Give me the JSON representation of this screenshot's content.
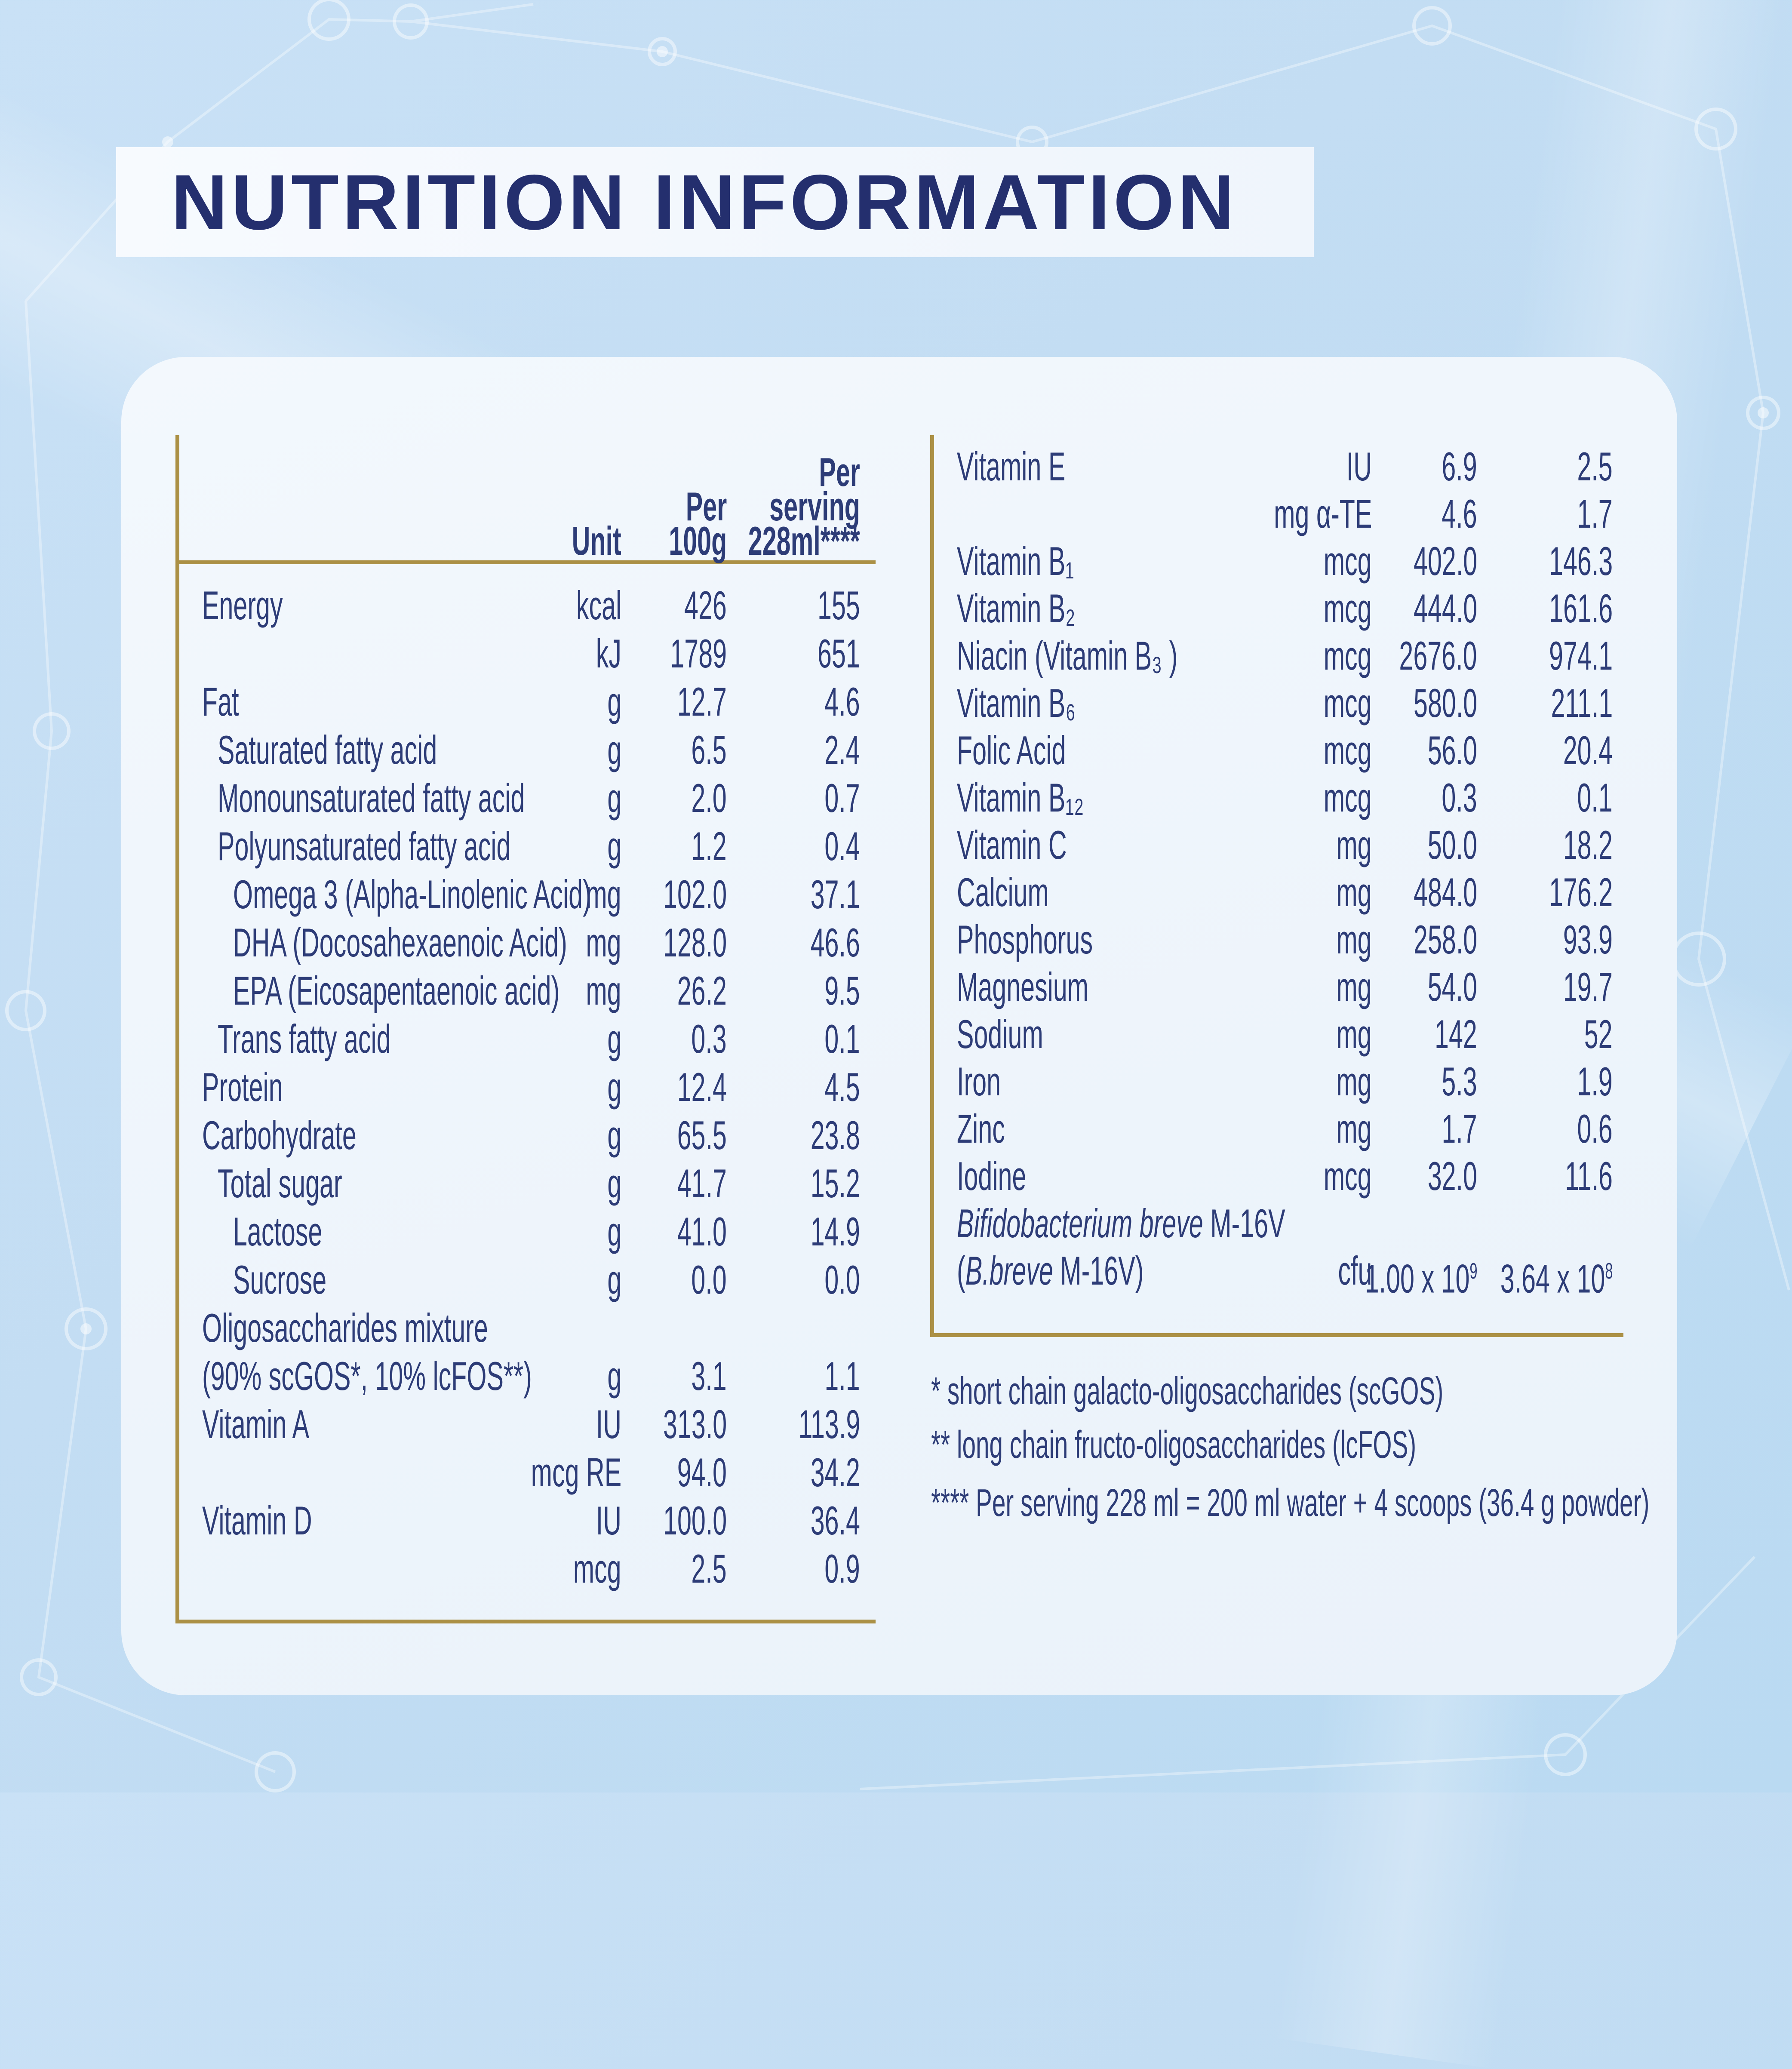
{
  "title": "NUTRITION INFORMATION",
  "colors": {
    "background_blue": "#c3ddf3",
    "panel_white": "#f2f7fd",
    "text_navy": "#2d3c77",
    "title_navy": "#242f6e",
    "accent_gold": "#ab9045"
  },
  "left_table": {
    "header": {
      "unit": "Unit",
      "per_100g": "Per\n100g",
      "per_serving": "Per\nserving\n228ml****"
    },
    "rows": [
      {
        "label": "Energy",
        "indent": 0,
        "unit": "kcal",
        "per_100g": "426",
        "per_serving": "155"
      },
      {
        "label": "",
        "indent": 0,
        "unit": "kJ",
        "per_100g": "1789",
        "per_serving": "651"
      },
      {
        "label": "Fat",
        "indent": 0,
        "unit": "g",
        "per_100g": "12.7",
        "per_serving": "4.6"
      },
      {
        "label": "Saturated fatty acid",
        "indent": 1,
        "unit": "g",
        "per_100g": "6.5",
        "per_serving": "2.4"
      },
      {
        "label": "Monounsaturated fatty acid",
        "indent": 1,
        "unit": "g",
        "per_100g": "2.0",
        "per_serving": "0.7"
      },
      {
        "label": "Polyunsaturated fatty acid",
        "indent": 1,
        "unit": "g",
        "per_100g": "1.2",
        "per_serving": "0.4"
      },
      {
        "label": "Omega 3 (Alpha-Linolenic Acid)",
        "indent": 2,
        "unit": "mg",
        "per_100g": "102.0",
        "per_serving": "37.1"
      },
      {
        "label": "DHA (Docosahexaenoic Acid)",
        "indent": 2,
        "unit": "mg",
        "per_100g": "128.0",
        "per_serving": "46.6"
      },
      {
        "label": "EPA (Eicosapentaenoic acid)",
        "indent": 2,
        "unit": "mg",
        "per_100g": "26.2",
        "per_serving": "9.5"
      },
      {
        "label": "Trans fatty acid",
        "indent": 1,
        "unit": "g",
        "per_100g": "0.3",
        "per_serving": "0.1"
      },
      {
        "label": "Protein",
        "indent": 0,
        "unit": "g",
        "per_100g": "12.4",
        "per_serving": "4.5"
      },
      {
        "label": "Carbohydrate",
        "indent": 0,
        "unit": "g",
        "per_100g": "65.5",
        "per_serving": "23.8"
      },
      {
        "label": "Total sugar",
        "indent": 1,
        "unit": "g",
        "per_100g": "41.7",
        "per_serving": "15.2"
      },
      {
        "label": "Lactose",
        "indent": 2,
        "unit": "g",
        "per_100g": "41.0",
        "per_serving": "14.9"
      },
      {
        "label": "Sucrose",
        "indent": 2,
        "unit": "g",
        "per_100g": "0.0",
        "per_serving": "0.0"
      },
      {
        "label": "Oligosaccharides mixture",
        "indent": 0,
        "unit": "",
        "per_100g": "",
        "per_serving": ""
      },
      {
        "label": "(90% scGOS*, 10% lcFOS**)",
        "indent": 0,
        "unit": "g",
        "per_100g": "3.1",
        "per_serving": "1.1"
      },
      {
        "label": "Vitamin A",
        "indent": 0,
        "unit": "IU",
        "per_100g": "313.0",
        "per_serving": "113.9"
      },
      {
        "label": "",
        "indent": 0,
        "unit": "mcg RE",
        "per_100g": "94.0",
        "per_serving": "34.2"
      },
      {
        "label": "Vitamin D",
        "indent": 0,
        "unit": "IU",
        "per_100g": "100.0",
        "per_serving": "36.4"
      },
      {
        "label": "",
        "indent": 0,
        "unit": "mcg",
        "per_100g": "2.5",
        "per_serving": "0.9"
      }
    ]
  },
  "right_table": {
    "rows": [
      {
        "label": "Vitamin E",
        "indent": 0,
        "unit": "IU",
        "per_100g": "6.9",
        "per_serving": "2.5"
      },
      {
        "label": "",
        "indent": 0,
        "unit": "mg α-TE",
        "per_100g": "4.6",
        "per_serving": "1.7"
      },
      {
        "label": "Vitamin B₁",
        "indent": 0,
        "unit": "mcg",
        "per_100g": "402.0",
        "per_serving": "146.3"
      },
      {
        "label": "Vitamin B₂",
        "indent": 0,
        "unit": "mcg",
        "per_100g": "444.0",
        "per_serving": "161.6"
      },
      {
        "label": "Niacin (Vitamin B₃ )",
        "indent": 0,
        "unit": "mcg",
        "per_100g": "2676.0",
        "per_serving": "974.1"
      },
      {
        "label": "Vitamin B₆",
        "indent": 0,
        "unit": "mcg",
        "per_100g": "580.0",
        "per_serving": "211.1"
      },
      {
        "label": "Folic Acid",
        "indent": 0,
        "unit": "mcg",
        "per_100g": "56.0",
        "per_serving": "20.4"
      },
      {
        "label": "Vitamin B₁₂",
        "indent": 0,
        "unit": "mcg",
        "per_100g": "0.3",
        "per_serving": "0.1"
      },
      {
        "label": "Vitamin C",
        "indent": 0,
        "unit": "mg",
        "per_100g": "50.0",
        "per_serving": "18.2"
      },
      {
        "label": "Calcium",
        "indent": 0,
        "unit": "mg",
        "per_100g": "484.0",
        "per_serving": "176.2"
      },
      {
        "label": "Phosphorus",
        "indent": 0,
        "unit": "mg",
        "per_100g": "258.0",
        "per_serving": "93.9"
      },
      {
        "label": "Magnesium",
        "indent": 0,
        "unit": "mg",
        "per_100g": "54.0",
        "per_serving": "19.7"
      },
      {
        "label": "Sodium",
        "indent": 0,
        "unit": "mg",
        "per_100g": "142",
        "per_serving": "52"
      },
      {
        "label": "Iron",
        "indent": 0,
        "unit": "mg",
        "per_100g": "5.3",
        "per_serving": "1.9"
      },
      {
        "label": "Zinc",
        "indent": 0,
        "unit": "mg",
        "per_100g": "1.7",
        "per_serving": "0.6"
      },
      {
        "label": "Iodine",
        "indent": 0,
        "unit": "mcg",
        "per_100g": "32.0",
        "per_serving": "11.6"
      },
      {
        "label": [
          {
            "t": "Bifidobacterium breve ",
            "italic": true
          },
          {
            "t": "M-16V",
            "italic": false
          }
        ],
        "indent": 0,
        "unit": "",
        "per_100g": "",
        "per_serving": ""
      },
      {
        "label": [
          {
            "t": "(",
            "italic": false
          },
          {
            "t": "B.breve",
            "italic": true
          },
          {
            "t": " M-16V)",
            "italic": false
          }
        ],
        "indent": 0,
        "unit": "cfu",
        "per_100g": {
          "base": "1.00 x 10",
          "sup": "9"
        },
        "per_serving": {
          "base": "3.64 x 10",
          "sup": "8"
        }
      }
    ]
  },
  "footnotes": [
    "* short chain galacto-oligosaccharides (scGOS)",
    "** long chain fructo-oligosaccharides (lcFOS)",
    "**** Per serving 228 ml = 200 ml water + 4 scoops (36.4 g powder)"
  ]
}
